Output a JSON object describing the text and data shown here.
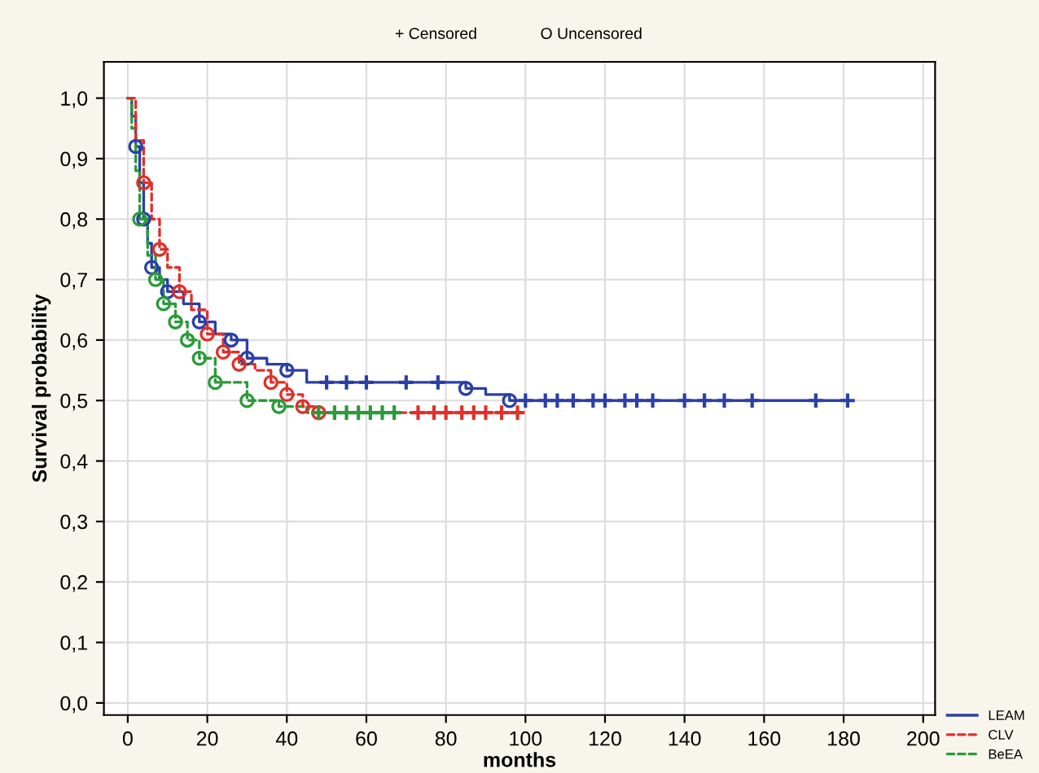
{
  "chart_data": {
    "type": "step",
    "xlabel": "months",
    "ylabel": "Survival probability",
    "annotations": [
      "+ Censored",
      "O Uncensored"
    ],
    "xlim": [
      -6,
      203
    ],
    "ylim": [
      -0.02,
      1.06
    ],
    "xticks": [
      0,
      20,
      40,
      60,
      80,
      100,
      120,
      140,
      160,
      180,
      200
    ],
    "yticks": [
      {
        "value": 0,
        "label": "0,0"
      },
      {
        "value": 0.1,
        "label": "0,1"
      },
      {
        "value": 0.2,
        "label": "0,2"
      },
      {
        "value": 0.3,
        "label": "0,3"
      },
      {
        "value": 0.4,
        "label": "0,4"
      },
      {
        "value": 0.5,
        "label": "0,5"
      },
      {
        "value": 0.6,
        "label": "0,6"
      },
      {
        "value": 0.7,
        "label": "0,7"
      },
      {
        "value": 0.8,
        "label": "0,8"
      },
      {
        "value": 0.9,
        "label": "0,9"
      },
      {
        "value": 1.0,
        "label": "1,0"
      }
    ],
    "grid": true,
    "legend": "bottom right",
    "series": [
      {
        "name": "LEAM",
        "color": "#2b3fa8",
        "line_style": "solid",
        "marker": "none",
        "x": [
          0,
          1,
          2,
          3,
          4,
          5,
          6,
          8,
          10,
          14,
          18,
          22,
          26,
          30,
          35,
          40,
          45,
          60,
          85,
          90,
          96,
          181
        ],
        "values": [
          1.0,
          0.97,
          0.92,
          0.86,
          0.8,
          0.76,
          0.72,
          0.7,
          0.68,
          0.66,
          0.63,
          0.61,
          0.6,
          0.57,
          0.56,
          0.55,
          0.53,
          0.53,
          0.52,
          0.51,
          0.5,
          0.5
        ]
      },
      {
        "name": "CLV",
        "color": "#e0302a",
        "line_style": "dashed",
        "marker": "none",
        "x": [
          0,
          2,
          4,
          6,
          8,
          10,
          13,
          16,
          20,
          24,
          28,
          32,
          36,
          40,
          44,
          48,
          98
        ],
        "values": [
          1.0,
          0.93,
          0.86,
          0.8,
          0.75,
          0.72,
          0.68,
          0.65,
          0.61,
          0.58,
          0.56,
          0.55,
          0.53,
          0.51,
          0.49,
          0.48,
          0.48
        ]
      },
      {
        "name": "BeEA",
        "color": "#2a9a3a",
        "line_style": "dashed",
        "marker": "none",
        "x": [
          0,
          1,
          2,
          3,
          5,
          7,
          9,
          12,
          15,
          18,
          22,
          30,
          38,
          45,
          67
        ],
        "values": [
          1.0,
          0.95,
          0.88,
          0.8,
          0.74,
          0.7,
          0.66,
          0.63,
          0.6,
          0.57,
          0.53,
          0.5,
          0.49,
          0.48,
          0.48
        ]
      },
      {
        "type": "scatter",
        "color": "#2b3fa8",
        "marker": "circle",
        "x": [
          2,
          4,
          6,
          10,
          18,
          26,
          30,
          40,
          85,
          96
        ],
        "values": [
          0.92,
          0.8,
          0.72,
          0.68,
          0.63,
          0.6,
          0.57,
          0.55,
          0.52,
          0.5
        ]
      },
      {
        "type": "scatter",
        "color": "#e0302a",
        "marker": "circle",
        "x": [
          4,
          8,
          13,
          20,
          24,
          28,
          36,
          40,
          44,
          48
        ],
        "values": [
          0.86,
          0.75,
          0.68,
          0.61,
          0.58,
          0.56,
          0.53,
          0.51,
          0.49,
          0.48
        ]
      },
      {
        "type": "scatter",
        "color": "#2a9a3a",
        "marker": "circle",
        "x": [
          3,
          7,
          9,
          12,
          15,
          18,
          22,
          30,
          38
        ],
        "values": [
          0.8,
          0.7,
          0.66,
          0.63,
          0.6,
          0.57,
          0.53,
          0.5,
          0.49
        ]
      },
      {
        "type": "scatter",
        "color": "#2b3fa8",
        "marker": "cross",
        "x": [
          50,
          55,
          60,
          70,
          78,
          100,
          105,
          108,
          112,
          117,
          120,
          125,
          128,
          132,
          140,
          145,
          150,
          157,
          173,
          181
        ],
        "values": [
          0.53,
          0.53,
          0.53,
          0.53,
          0.53,
          0.5,
          0.5,
          0.5,
          0.5,
          0.5,
          0.5,
          0.5,
          0.5,
          0.5,
          0.5,
          0.5,
          0.5,
          0.5,
          0.5,
          0.5
        ]
      },
      {
        "type": "scatter",
        "color": "#e0302a",
        "marker": "cross",
        "x": [
          73,
          77,
          80,
          84,
          87,
          90,
          94,
          98
        ],
        "values": [
          0.48,
          0.48,
          0.48,
          0.48,
          0.48,
          0.48,
          0.48,
          0.48
        ]
      },
      {
        "type": "scatter",
        "color": "#2a9a3a",
        "marker": "cross",
        "x": [
          48,
          52,
          55,
          58,
          61,
          64,
          67
        ],
        "values": [
          0.48,
          0.48,
          0.48,
          0.48,
          0.48,
          0.48,
          0.48
        ]
      }
    ]
  }
}
